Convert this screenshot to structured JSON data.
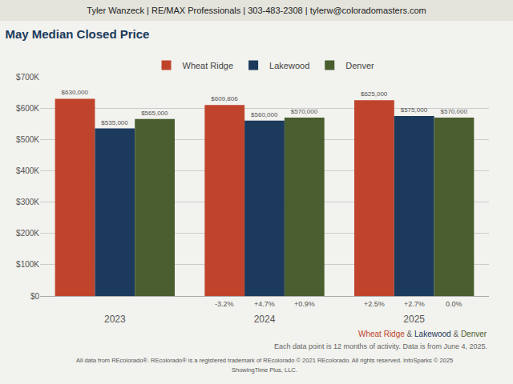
{
  "chart_data": {
    "type": "bar",
    "title": "May Median Closed Price",
    "header": "Tyler Wanzeck | RE/MAX Professionals | 303-483-2308 | tylerw@coloradomasters.com",
    "categories": [
      "2023",
      "2024",
      "2025"
    ],
    "series": [
      {
        "name": "Wheat Ridge",
        "color": "#C0442C",
        "values": [
          630000,
          609806,
          625000
        ],
        "value_labels": [
          "$630,000",
          "$609,806",
          "$625,000"
        ],
        "pct_changes": [
          null,
          "-3.2%",
          "+2.5%"
        ]
      },
      {
        "name": "Lakewood",
        "color": "#1B3A5C",
        "values": [
          535000,
          560000,
          575000
        ],
        "value_labels": [
          "$535,000",
          "$560,000",
          "$575,000"
        ],
        "pct_changes": [
          null,
          "+4.7%",
          "+2.7%"
        ]
      },
      {
        "name": "Denver",
        "color": "#4A5E2F",
        "values": [
          565000,
          570000,
          570000
        ],
        "value_labels": [
          "$565,000",
          "$570,000",
          "$570,000"
        ],
        "pct_changes": [
          null,
          "+0.9%",
          "0.0%"
        ]
      }
    ],
    "ylim": [
      0,
      700000
    ],
    "yticks": [
      {
        "value": 0,
        "label": "$0"
      },
      {
        "value": 100000,
        "label": "$100K"
      },
      {
        "value": 200000,
        "label": "$200K"
      },
      {
        "value": 300000,
        "label": "$300K"
      },
      {
        "value": 400000,
        "label": "$400K"
      },
      {
        "value": 500000,
        "label": "$500K"
      },
      {
        "value": 600000,
        "label": "$600K"
      },
      {
        "value": 700000,
        "label": "$700K"
      }
    ],
    "grid": true,
    "legend": "top",
    "data_labels": true,
    "watermark_parts": [
      {
        "text": "Wheat Ridge",
        "color": "#C0442C"
      },
      {
        "text": " & ",
        "color": "#666666"
      },
      {
        "text": "Lakewood",
        "color": "#1B3A5C"
      },
      {
        "text": " & ",
        "color": "#666666"
      },
      {
        "text": "Denver",
        "color": "#4A5E2F"
      }
    ],
    "notes": [
      "Each data point is 12 months of activity. Data is from June 4, 2025.",
      "All data from REcolorado®. REcolorado® is a registered trademark of REcolorado © 2021 REcolorado. All rights reserved. InfoSparks © 2025",
      "ShowingTime Plus, LLC."
    ]
  }
}
